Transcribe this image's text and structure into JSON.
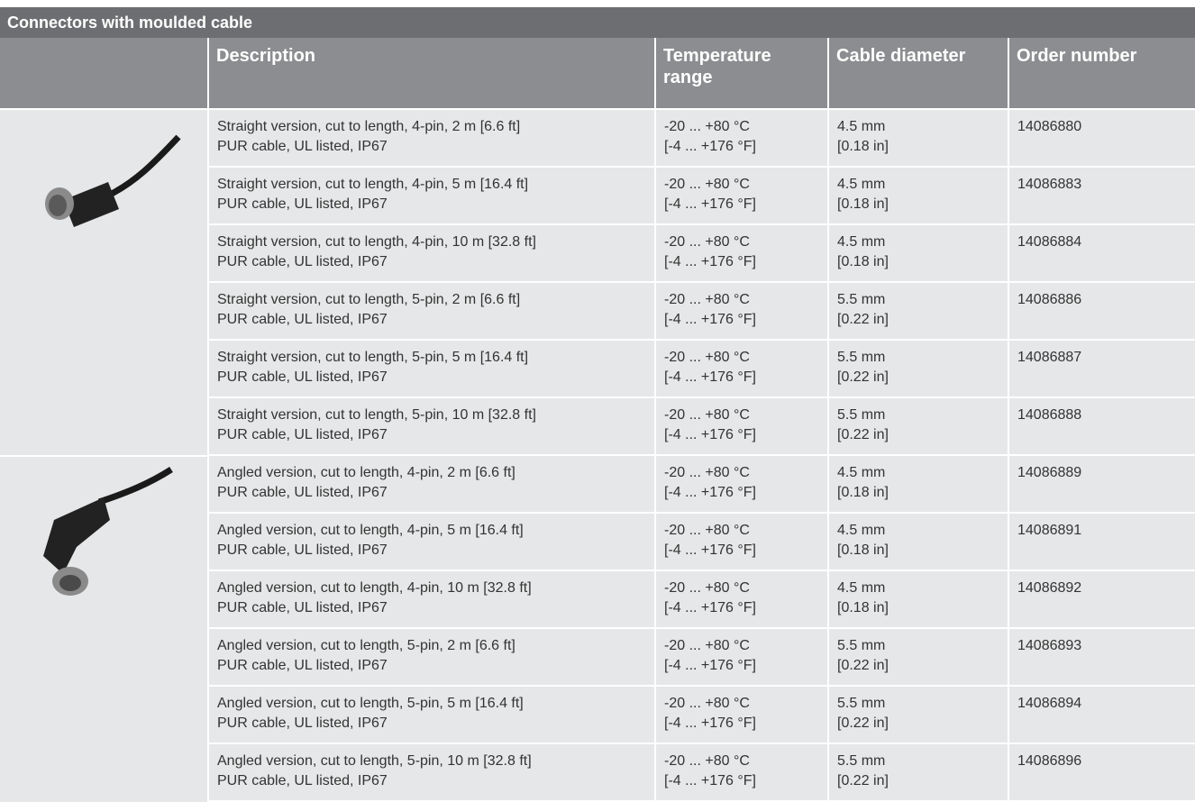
{
  "header": {
    "title": "Connectors with moulded cable"
  },
  "table": {
    "columns": [
      "Description",
      "Temperature range",
      "Cable diameter",
      "Order number"
    ],
    "rows": [
      [
        [
          "Straight version, cut to length, 4-pin, 2 m [6.6 ft]",
          "PUR cable, UL listed, IP67"
        ],
        [
          "-20 ... +80 °C",
          "[-4 ... +176 °F]"
        ],
        [
          "4.5 mm",
          "[0.18 in]"
        ],
        "14086880"
      ],
      [
        [
          "Straight version, cut to length, 4-pin, 5 m [16.4 ft]",
          "PUR cable, UL listed, IP67"
        ],
        [
          "-20 ... +80 °C",
          "[-4 ... +176 °F]"
        ],
        [
          "4.5 mm",
          "[0.18 in]"
        ],
        "14086883"
      ],
      [
        [
          "Straight version, cut to length, 4-pin, 10 m [32.8 ft]",
          "PUR cable, UL listed, IP67"
        ],
        [
          "-20 ... +80 °C",
          "[-4 ... +176 °F]"
        ],
        [
          "4.5 mm",
          "[0.18 in]"
        ],
        "14086884"
      ],
      [
        [
          "Straight version, cut to length, 5-pin, 2 m [6.6 ft]",
          "PUR cable, UL listed, IP67"
        ],
        [
          "-20 ... +80 °C",
          "[-4 ... +176 °F]"
        ],
        [
          "5.5 mm",
          "[0.22 in]"
        ],
        "14086886"
      ],
      [
        [
          "Straight version, cut to length, 5-pin, 5 m [16.4 ft]",
          "PUR cable, UL listed, IP67"
        ],
        [
          "-20 ... +80 °C",
          "[-4 ... +176 °F]"
        ],
        [
          "5.5 mm",
          "[0.22 in]"
        ],
        "14086887"
      ],
      [
        [
          "Straight version, cut to length, 5-pin, 10 m [32.8 ft]",
          "PUR cable, UL listed, IP67"
        ],
        [
          "-20 ... +80 °C",
          "[-4 ... +176 °F]"
        ],
        [
          "5.5 mm",
          "[0.22 in]"
        ],
        "14086888"
      ],
      [
        [
          "Angled version, cut to length, 4-pin, 2 m [6.6 ft]",
          "PUR cable, UL listed, IP67"
        ],
        [
          "-20 ... +80 °C",
          "[-4 ... +176 °F]"
        ],
        [
          "4.5 mm",
          "[0.18 in]"
        ],
        "14086889"
      ],
      [
        [
          "Angled version, cut to length, 4-pin, 5 m [16.4 ft]",
          "PUR cable, UL listed, IP67"
        ],
        [
          "-20 ... +80 °C",
          "[-4 ... +176 °F]"
        ],
        [
          "4.5 mm",
          "[0.18 in]"
        ],
        "14086891"
      ],
      [
        [
          "Angled version, cut to length, 4-pin, 10 m [32.8 ft]",
          "PUR cable, UL listed, IP67"
        ],
        [
          "-20 ... +80 °C",
          "[-4 ... +176 °F]"
        ],
        [
          "4.5 mm",
          "[0.18 in]"
        ],
        "14086892"
      ],
      [
        [
          "Angled version, cut to length, 5-pin, 2 m [6.6 ft]",
          "PUR cable, UL listed, IP67"
        ],
        [
          "-20 ... +80 °C",
          "[-4 ... +176 °F]"
        ],
        [
          "5.5 mm",
          "[0.22 in]"
        ],
        "14086893"
      ],
      [
        [
          "Angled version, cut to length, 5-pin, 5 m [16.4 ft]",
          "PUR cable, UL listed, IP67"
        ],
        [
          "-20 ... +80 °C",
          "[-4 ... +176 °F]"
        ],
        [
          "5.5 mm",
          "[0.22 in]"
        ],
        "14086894"
      ],
      [
        [
          "Angled version, cut to length, 5-pin, 10 m [32.8 ft]",
          "PUR cable, UL listed, IP67"
        ],
        [
          "-20 ... +80 °C",
          "[-4 ... +176 °F]"
        ],
        [
          "5.5 mm",
          "[0.22 in]"
        ],
        "14086896"
      ]
    ]
  }
}
